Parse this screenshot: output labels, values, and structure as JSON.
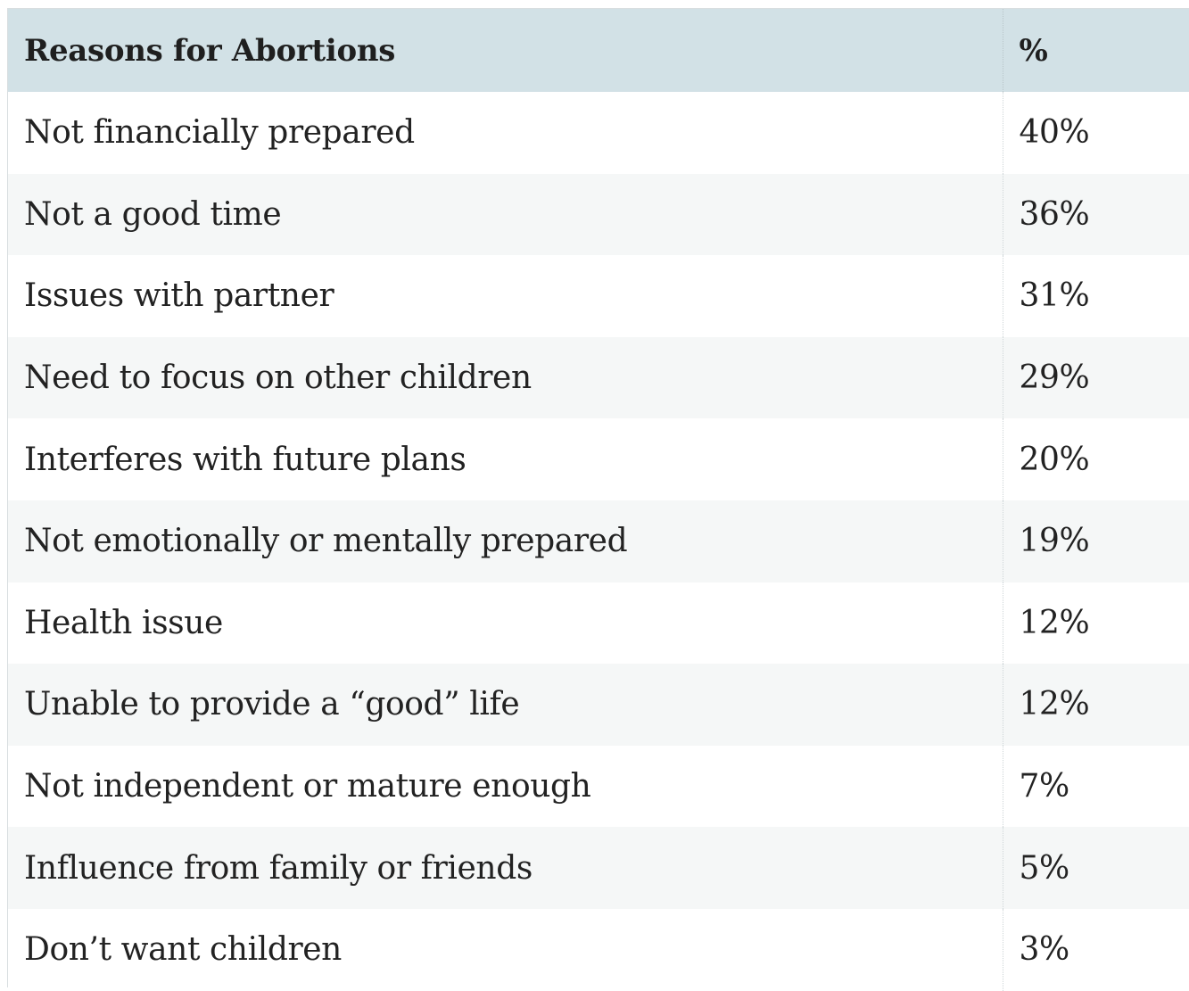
{
  "table": {
    "headers": [
      "Reasons for Abortions",
      "%"
    ],
    "rows": [
      {
        "reason": "Not financially prepared",
        "percent": "40%"
      },
      {
        "reason": "Not a good time",
        "percent": "36%"
      },
      {
        "reason": "Issues with partner",
        "percent": "31%"
      },
      {
        "reason": "Need to focus on other children",
        "percent": "29%"
      },
      {
        "reason": "Interferes with future plans",
        "percent": "20%"
      },
      {
        "reason": "Not emotionally or mentally prepared",
        "percent": "19%"
      },
      {
        "reason": "Health issue",
        "percent": "12%"
      },
      {
        "reason": "Unable to provide a “good” life",
        "percent": "12%"
      },
      {
        "reason": "Not independent or mature enough",
        "percent": "7%"
      },
      {
        "reason": "Influence from family or friends",
        "percent": "5%"
      },
      {
        "reason": "Don’t want children",
        "percent": "3%"
      }
    ]
  },
  "colors": {
    "header_bg": "#d2e1e6",
    "row_alt_bg": "#f5f7f7",
    "text": "#222222"
  }
}
